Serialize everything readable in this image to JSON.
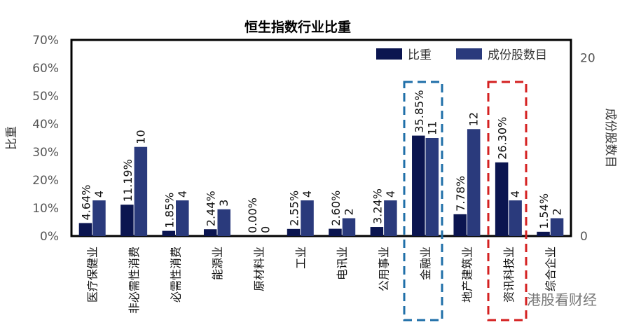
{
  "chart_data": {
    "type": "bar",
    "title": "恒生指数行业比重",
    "ylabel": "比重",
    "y2label": "成份股数目",
    "ylim": [
      0,
      70
    ],
    "y2lim": [
      0,
      22
    ],
    "yticks": [
      "0%",
      "10%",
      "20%",
      "30%",
      "40%",
      "50%",
      "60%",
      "70%"
    ],
    "y2ticks": [
      "0",
      "20"
    ],
    "legend_position": "top-right",
    "categories": [
      "医疗保健业",
      "非必需性消费",
      "必需性消费",
      "能源业",
      "原材料业",
      "工业",
      "电讯业",
      "公用事业",
      "金融业",
      "地产建筑业",
      "资讯科技业",
      "综合企业"
    ],
    "series": [
      {
        "name": "比重",
        "axis": "left",
        "color": "#0b1550",
        "values": [
          4.64,
          11.19,
          1.85,
          2.44,
          0.0,
          2.55,
          2.6,
          3.24,
          35.85,
          7.78,
          26.3,
          1.54
        ],
        "labels": [
          "4.64%",
          "11.19%",
          "1.85%",
          "2.44%",
          "0.00%",
          "2.55%",
          "2.60%",
          "3.24%",
          "35.85%",
          "7.78%",
          "26.30%",
          "1.54%"
        ]
      },
      {
        "name": "成份股数目",
        "axis": "right",
        "color": "#2a3a7c",
        "values": [
          4,
          10,
          4,
          3,
          0,
          4,
          2,
          4,
          11,
          12,
          4,
          2
        ],
        "labels": [
          "4",
          "10",
          "4",
          "3",
          "0",
          "4",
          "2",
          "4",
          "11",
          "12",
          "4",
          "2"
        ]
      }
    ],
    "highlights": [
      {
        "category": "金融业",
        "color": "#1f6fa8"
      },
      {
        "category": "资讯科技业",
        "color": "#d42020"
      }
    ],
    "grid": false
  },
  "watermark": "港股看财经"
}
